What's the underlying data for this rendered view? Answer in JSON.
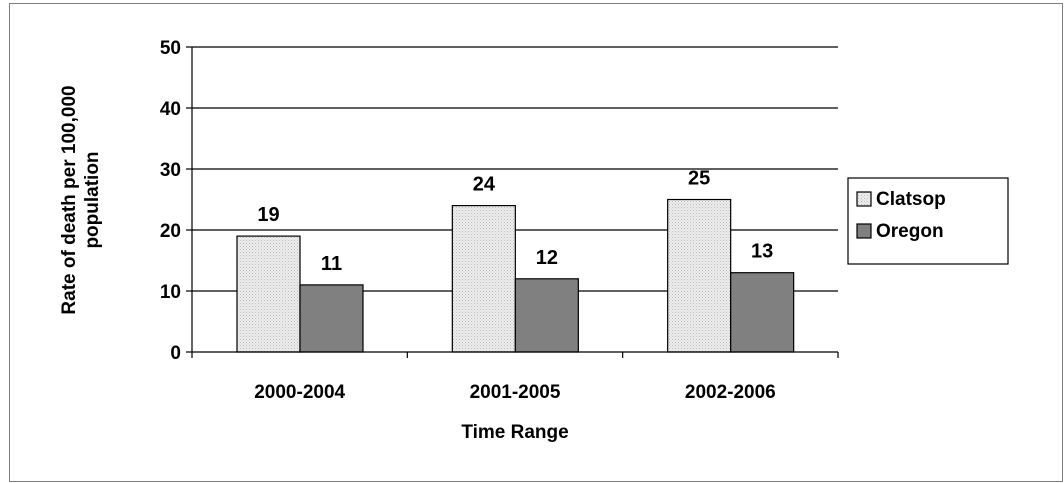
{
  "chart_data": {
    "type": "bar",
    "title": "",
    "xlabel": "Time Range",
    "ylabel": "Rate of death per 100,000 population",
    "ylabel_lines": [
      "Rate of death per 100,000",
      "population"
    ],
    "categories": [
      "2000-2004",
      "2001-2005",
      "2002-2006"
    ],
    "ylim": [
      0,
      50
    ],
    "yticks": [
      0,
      10,
      20,
      30,
      40,
      50
    ],
    "grid": true,
    "legend_position": "right",
    "series": [
      {
        "name": "Clatsop",
        "values": [
          19,
          24,
          25
        ],
        "labels": [
          "19",
          "24",
          "25"
        ],
        "color": "#e6e6e6",
        "pattern": "dotted"
      },
      {
        "name": "Oregon",
        "values": [
          11,
          12,
          13
        ],
        "labels": [
          "11",
          "12",
          "13"
        ],
        "color": "#808080"
      }
    ]
  }
}
